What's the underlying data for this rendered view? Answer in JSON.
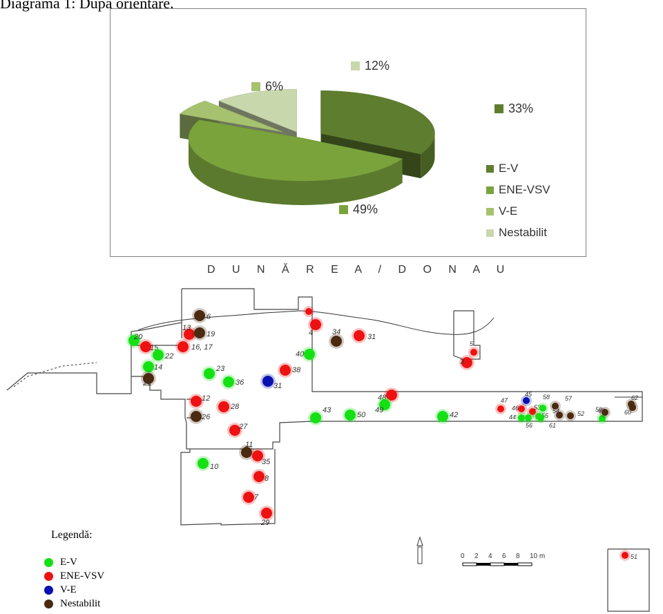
{
  "caption": "Diagrama 1: După orientare.",
  "chart_data": {
    "type": "pie",
    "categories": [
      "E-V",
      "ENE-VSV",
      "V-E",
      "Nestabilit"
    ],
    "values": [
      33,
      49,
      6,
      12
    ],
    "labels": [
      "33%",
      "49%",
      "6%",
      "12%"
    ],
    "colors": [
      "#5e7d2f",
      "#7aa33c",
      "#a6c26f",
      "#c9d7ad"
    ],
    "legend_position": "right"
  },
  "plan": {
    "river_label": "D U N Ă R E A / D O N A U",
    "scale_ticks": [
      "0",
      "2",
      "4",
      "6",
      "8",
      "10 m"
    ],
    "features": [
      {
        "n": "6",
        "t": "nestabilit"
      },
      {
        "n": "13",
        "t": "ene-vsv"
      },
      {
        "n": "19",
        "t": "nestabilit"
      },
      {
        "n": "16, 17",
        "t": "ene-vsv"
      },
      {
        "n": "20",
        "t": "e-v"
      },
      {
        "n": "15",
        "t": "ene-vsv"
      },
      {
        "n": "22",
        "t": "e-v"
      },
      {
        "n": "14",
        "t": "e-v"
      },
      {
        "n": "21",
        "t": "nestabilit"
      },
      {
        "n": "23",
        "t": "e-v"
      },
      {
        "n": "36",
        "t": "e-v"
      },
      {
        "n": "31",
        "t": "v-e"
      },
      {
        "n": "38",
        "t": "ene-vsv"
      },
      {
        "n": "40",
        "t": "e-v"
      },
      {
        "n": "4",
        "t": "ene-vsv"
      },
      {
        "n": "34",
        "t": "nestabilit"
      },
      {
        "n": "31",
        "t": "ene-vsv"
      },
      {
        "n": "12",
        "t": "ene-vsv"
      },
      {
        "n": "28",
        "t": "ene-vsv"
      },
      {
        "n": "26",
        "t": "nestabilit"
      },
      {
        "n": "27",
        "t": "ene-vsv"
      },
      {
        "n": "11",
        "t": "nestabilit"
      },
      {
        "n": "35",
        "t": "ene-vsv"
      },
      {
        "n": "10",
        "t": "e-v"
      },
      {
        "n": "8",
        "t": "ene-vsv"
      },
      {
        "n": "7",
        "t": "ene-vsv"
      },
      {
        "n": "29",
        "t": "ene-vsv"
      },
      {
        "n": "43",
        "t": "e-v"
      },
      {
        "n": "50",
        "t": "e-v"
      },
      {
        "n": "48",
        "t": "ene-vsv"
      },
      {
        "n": "49",
        "t": "e-v"
      },
      {
        "n": "42",
        "t": "e-v"
      },
      {
        "n": "3",
        "t": "ene-vsv"
      },
      {
        "n": "5",
        "t": "ene-vsv"
      },
      {
        "n": "47",
        "t": "ene-vsv"
      },
      {
        "n": "46",
        "t": "ene-vsv"
      },
      {
        "n": "45",
        "t": "v-e"
      },
      {
        "n": "53",
        "t": "ene-vsv"
      },
      {
        "n": "58",
        "t": "e-v"
      },
      {
        "n": "57",
        "t": "nestabilit"
      },
      {
        "n": "44",
        "t": "e-v"
      },
      {
        "n": "55",
        "t": "e-v"
      },
      {
        "n": "54",
        "t": "nestabilit"
      },
      {
        "n": "52",
        "t": "nestabilit"
      },
      {
        "n": "56",
        "t": "e-v"
      },
      {
        "n": "61",
        "t": "e-v"
      },
      {
        "n": "63",
        "t": "e-v"
      },
      {
        "n": "59",
        "t": "nestabilit"
      },
      {
        "n": "62",
        "t": "nestabilit"
      },
      {
        "n": "60",
        "t": "nestabilit"
      },
      {
        "n": "51",
        "t": "ene-vsv"
      },
      {
        "n": "2",
        "t": "ene-vsv"
      }
    ],
    "colors": {
      "e-v": "#14e014",
      "ene-vsv": "#ee1111",
      "v-e": "#0b10b0",
      "nestabilit": "#4a2a10"
    }
  },
  "legend": {
    "title": "Legendă:",
    "items": [
      {
        "label": "E-V",
        "color": "#14e014"
      },
      {
        "label": "ENE-VSV",
        "color": "#ee1111"
      },
      {
        "label": "V-E",
        "color": "#0b10b0"
      },
      {
        "label": "Nestabilit",
        "color": "#4a2a10"
      }
    ]
  }
}
